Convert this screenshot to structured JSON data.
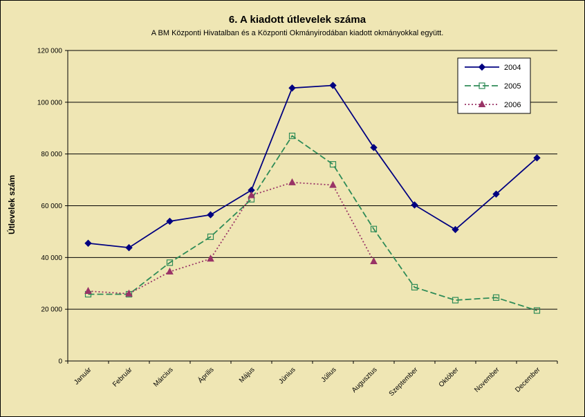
{
  "chart_data": {
    "type": "line",
    "title": "6. A  kiadott útlevelek száma",
    "subtitle": "A BM Központi Hivatalban és a Központi Okmányirodában kiadott okmányokkal együtt.",
    "xlabel": "",
    "ylabel": "Útlevelek szám",
    "ylim": [
      0,
      120000
    ],
    "yticks": [
      0,
      20000,
      40000,
      60000,
      80000,
      100000,
      120000
    ],
    "ytick_labels": [
      "0",
      "20 000",
      "40 000",
      "60 000",
      "80 000",
      "100 000",
      "120 000"
    ],
    "grid": true,
    "legend_position": "top-right",
    "categories": [
      "Január",
      "Február",
      "Március",
      "Április",
      "Május",
      "Június",
      "Július",
      "Augusztus",
      "Szeptember",
      "Október",
      "November",
      "December"
    ],
    "series": [
      {
        "name": "2004",
        "color": "#000080",
        "marker": "filled-diamond",
        "line_style": "solid",
        "values": [
          45500,
          43800,
          54000,
          56500,
          66000,
          105500,
          106500,
          82500,
          60300,
          50800,
          64500,
          78500
        ]
      },
      {
        "name": "2005",
        "color": "#2e8b57",
        "marker": "open-square",
        "line_style": "dashed",
        "values": [
          25800,
          25800,
          38000,
          48000,
          62500,
          87000,
          76000,
          51000,
          28500,
          23500,
          24500,
          19500
        ]
      },
      {
        "name": "2006",
        "color": "#993366",
        "marker": "filled-triangle",
        "line_style": "dotted",
        "values": [
          27000,
          26000,
          34500,
          39500,
          64000,
          69000,
          68000,
          38500,
          null,
          null,
          null,
          null
        ]
      }
    ]
  },
  "colors": {
    "background": "#efe6b4",
    "gridline": "#000000"
  }
}
